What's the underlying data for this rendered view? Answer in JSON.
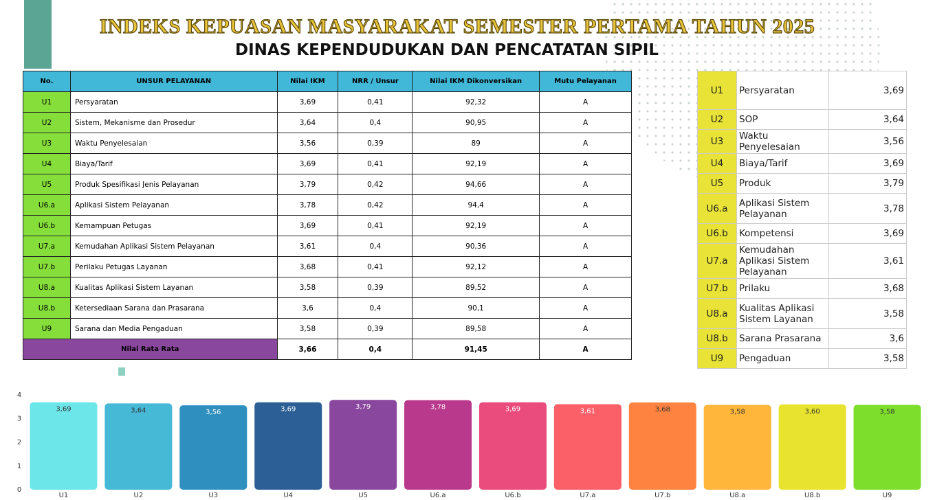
{
  "header": {
    "title": "INDEKS KEPUASAN MASYARAKAT SEMESTER PERTAMA TAHUN 2025",
    "subtitle": "DINAS KEPENDUDUKAN DAN PENCATATAN SIPIL"
  },
  "table": {
    "columns": [
      "No.",
      "UNSUR PELAYANAN",
      "Nilai IKM",
      "NRR / Unsur",
      "Nilai IKM Dikonversikan",
      "Mutu Pelayanan"
    ],
    "rows": [
      [
        "U1",
        "Persyaratan",
        "3,69",
        "0,41",
        "92,32",
        "A"
      ],
      [
        "U2",
        "Sistem, Mekanisme dan Prosedur",
        "3,64",
        "0,4",
        "90,95",
        "A"
      ],
      [
        "U3",
        "Waktu Penyelesaian",
        "3,56",
        "0,39",
        "89",
        "A"
      ],
      [
        "U4",
        "Biaya/Tarif",
        "3,69",
        "0,41",
        "92,19",
        "A"
      ],
      [
        "U5",
        "Produk Spesifikasi Jenis Pelayanan",
        "3,79",
        "0,42",
        "94,66",
        "A"
      ],
      [
        "U6.a",
        "Aplikasi Sistem Pelayanan",
        "3,78",
        "0,42",
        "94,4",
        "A"
      ],
      [
        "U6.b",
        "Kemampuan Petugas",
        "3,69",
        "0,41",
        "92,19",
        "A"
      ],
      [
        "U7.a",
        "Kemudahan Aplikasi Sistem Pelayanan",
        "3,61",
        "0,4",
        "90,36",
        "A"
      ],
      [
        "U7.b",
        "Perilaku Petugas Layanan",
        "3,68",
        "0,41",
        "92,12",
        "A"
      ],
      [
        "U8.a",
        "Kualitas Aplikasi Sistem Layanan",
        "3,58",
        "0,39",
        "89,52",
        "A"
      ],
      [
        "U8.b",
        "Ketersediaan Sarana dan Prasarana",
        "3,6",
        "0,4",
        "90,1",
        "A"
      ],
      [
        "U9",
        "Sarana dan Media Pengaduan",
        "3,58",
        "0,39",
        "89,58",
        "A"
      ]
    ],
    "footer": {
      "label": "Nilai Rata Rata",
      "values": [
        "3,66",
        "0,4",
        "91,45",
        "A"
      ]
    }
  },
  "summary_table": {
    "rows": [
      [
        "U1",
        "Persyaratan",
        "3,69"
      ],
      [
        "U2",
        "SOP",
        "3,64"
      ],
      [
        "U3",
        "Waktu Penyelesaian",
        "3,56"
      ],
      [
        "U4",
        "Biaya/Tarif",
        "3,69"
      ],
      [
        "U5",
        "Produk",
        "3,79"
      ],
      [
        "U6.a",
        "Aplikasi Sistem Pelayanan",
        "3,78"
      ],
      [
        "U6.b",
        "Kompetensi",
        "3,69"
      ],
      [
        "U7.a",
        "Kemudahan Aplikasi Sistem Pelayanan",
        "3,61"
      ],
      [
        "U7.b",
        "Prilaku",
        "3,68"
      ],
      [
        "U8.a",
        "Kualitas Aplikasi Sistem Layanan",
        "3,58"
      ],
      [
        "U8.b",
        "Sarana Prasarana",
        "3,6"
      ],
      [
        "U9",
        "Pengaduan",
        "3,58"
      ]
    ]
  },
  "chart_data": {
    "type": "bar",
    "categories": [
      "U1",
      "U2",
      "U3",
      "U4",
      "U5",
      "U6.a",
      "U6.b",
      "U7.a",
      "U7.b",
      "U8.a",
      "U8.b",
      "U9"
    ],
    "values": [
      3.69,
      3.64,
      3.56,
      3.69,
      3.79,
      3.78,
      3.69,
      3.61,
      3.68,
      3.58,
      3.6,
      3.58
    ],
    "value_labels": [
      "3,69",
      "3,64",
      "3,56",
      "3,69",
      "3,79",
      "3,78",
      "3,69",
      "3,61",
      "3,68",
      "3,58",
      "3,60",
      "3,58"
    ],
    "colors": [
      "#6de6ea",
      "#45b9d6",
      "#2f8fbf",
      "#2c5f96",
      "#8a479e",
      "#b9398c",
      "#ea4c7d",
      "#fb5f68",
      "#ff8340",
      "#ffb63a",
      "#e8e32e",
      "#7ede2c"
    ],
    "ylim": [
      0,
      4
    ],
    "yticks": [
      0,
      1,
      2,
      3,
      4
    ]
  }
}
